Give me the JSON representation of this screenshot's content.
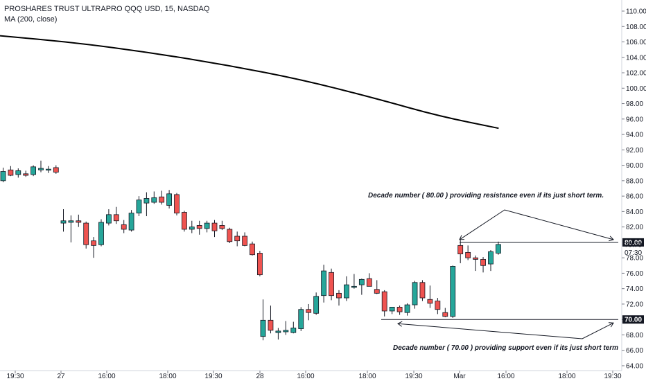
{
  "legend": {
    "symbol_line": "PROSHARES TRUST ULTRAPRO QQQ USD, 15, NASDAQ",
    "indicator_line": "MA (200, close)"
  },
  "colors": {
    "up": "#26a69a",
    "down": "#ef5350",
    "ma": "#000000",
    "level_tag": "#131722"
  },
  "chart_data": {
    "type": "candlestick",
    "ylim": [
      64,
      111
    ],
    "y_ticks": [
      64,
      66,
      68,
      70,
      72,
      74,
      76,
      78,
      82,
      84,
      86,
      88,
      90,
      92,
      94,
      96,
      98,
      100,
      102,
      104,
      106,
      108,
      110
    ],
    "x_ticks": [
      "19:30",
      "27",
      "16:00",
      "18:00",
      "19:30",
      "28",
      "16:00",
      "18:00",
      "19:30",
      "Mar",
      "16:00",
      "18:00",
      "19:30"
    ],
    "price_labels": {
      "upper_level": "80.00",
      "last_price": "79.73",
      "countdown": "07:30",
      "lower_level": "70.00"
    },
    "levels": [
      {
        "value": 80.0,
        "label": "80.00"
      },
      {
        "value": 70.0,
        "label": "70.00"
      }
    ],
    "annotations": {
      "resistance": "Decade number ( 80.00 ) providing resistance even if its just short term.",
      "support": "Decade number ( 70.00 ) providing support even if its just short term"
    },
    "candles": [
      {
        "o": 88.0,
        "h": 89.7,
        "l": 87.8,
        "c": 89.2
      },
      {
        "o": 89.4,
        "h": 89.9,
        "l": 88.6,
        "c": 88.7
      },
      {
        "o": 88.8,
        "h": 89.6,
        "l": 88.4,
        "c": 89.3
      },
      {
        "o": 88.9,
        "h": 89.3,
        "l": 88.5,
        "c": 88.7
      },
      {
        "o": 88.8,
        "h": 90.0,
        "l": 88.6,
        "c": 89.8
      },
      {
        "o": 89.4,
        "h": 90.6,
        "l": 89.1,
        "c": 89.6
      },
      {
        "o": 89.5,
        "h": 89.9,
        "l": 89.0,
        "c": 89.5
      },
      {
        "o": 89.7,
        "h": 90.0,
        "l": 88.9,
        "c": 89.1
      },
      {
        "o": 82.5,
        "h": 84.3,
        "l": 81.4,
        "c": 82.8
      },
      {
        "o": 82.6,
        "h": 83.5,
        "l": 80.0,
        "c": 82.8
      },
      {
        "o": 82.8,
        "h": 83.6,
        "l": 82.0,
        "c": 82.6
      },
      {
        "o": 82.5,
        "h": 82.7,
        "l": 79.2,
        "c": 79.7
      },
      {
        "o": 80.2,
        "h": 80.7,
        "l": 78.0,
        "c": 79.6
      },
      {
        "o": 79.7,
        "h": 83.0,
        "l": 79.5,
        "c": 82.6
      },
      {
        "o": 82.5,
        "h": 84.3,
        "l": 82.2,
        "c": 83.6
      },
      {
        "o": 83.6,
        "h": 84.6,
        "l": 82.4,
        "c": 82.8
      },
      {
        "o": 82.3,
        "h": 82.9,
        "l": 81.2,
        "c": 81.7
      },
      {
        "o": 81.6,
        "h": 84.2,
        "l": 81.4,
        "c": 83.8
      },
      {
        "o": 83.8,
        "h": 86.0,
        "l": 83.4,
        "c": 85.5
      },
      {
        "o": 85.1,
        "h": 86.5,
        "l": 83.4,
        "c": 85.7
      },
      {
        "o": 85.2,
        "h": 86.6,
        "l": 85.0,
        "c": 85.8
      },
      {
        "o": 85.9,
        "h": 86.7,
        "l": 84.9,
        "c": 85.2
      },
      {
        "o": 84.8,
        "h": 86.8,
        "l": 84.4,
        "c": 86.3
      },
      {
        "o": 86.2,
        "h": 86.4,
        "l": 83.5,
        "c": 83.8
      },
      {
        "o": 83.9,
        "h": 84.1,
        "l": 81.4,
        "c": 81.7
      },
      {
        "o": 81.7,
        "h": 82.8,
        "l": 81.2,
        "c": 82.0
      },
      {
        "o": 82.2,
        "h": 82.8,
        "l": 81.0,
        "c": 81.8
      },
      {
        "o": 81.8,
        "h": 82.8,
        "l": 81.3,
        "c": 82.5
      },
      {
        "o": 82.5,
        "h": 82.9,
        "l": 80.7,
        "c": 81.5
      },
      {
        "o": 82.2,
        "h": 82.8,
        "l": 81.6,
        "c": 81.8
      },
      {
        "o": 81.7,
        "h": 81.9,
        "l": 79.9,
        "c": 80.1
      },
      {
        "o": 80.8,
        "h": 81.4,
        "l": 79.5,
        "c": 80.2
      },
      {
        "o": 80.8,
        "h": 81.3,
        "l": 79.5,
        "c": 79.6
      },
      {
        "o": 79.8,
        "h": 80.1,
        "l": 78.3,
        "c": 78.4
      },
      {
        "o": 78.6,
        "h": 78.9,
        "l": 75.6,
        "c": 75.8
      },
      {
        "o": 67.8,
        "h": 72.6,
        "l": 67.3,
        "c": 69.9
      },
      {
        "o": 69.9,
        "h": 71.8,
        "l": 68.2,
        "c": 68.6
      },
      {
        "o": 68.3,
        "h": 68.9,
        "l": 67.4,
        "c": 68.5
      },
      {
        "o": 68.4,
        "h": 69.8,
        "l": 68.0,
        "c": 68.6
      },
      {
        "o": 68.3,
        "h": 69.7,
        "l": 68.2,
        "c": 68.9
      },
      {
        "o": 68.8,
        "h": 71.6,
        "l": 68.5,
        "c": 71.3
      },
      {
        "o": 71.3,
        "h": 72.0,
        "l": 69.9,
        "c": 70.9
      },
      {
        "o": 70.8,
        "h": 73.5,
        "l": 70.6,
        "c": 73.0
      },
      {
        "o": 73.1,
        "h": 77.1,
        "l": 72.2,
        "c": 76.3
      },
      {
        "o": 76.1,
        "h": 76.6,
        "l": 72.5,
        "c": 73.1
      },
      {
        "o": 73.4,
        "h": 73.8,
        "l": 71.8,
        "c": 72.8
      },
      {
        "o": 72.8,
        "h": 75.6,
        "l": 72.4,
        "c": 74.5
      },
      {
        "o": 74.2,
        "h": 75.9,
        "l": 74.0,
        "c": 74.3
      },
      {
        "o": 74.5,
        "h": 75.3,
        "l": 73.2,
        "c": 75.2
      },
      {
        "o": 75.3,
        "h": 76.0,
        "l": 74.4,
        "c": 74.3
      },
      {
        "o": 73.9,
        "h": 75.1,
        "l": 73.3,
        "c": 73.4
      },
      {
        "o": 73.6,
        "h": 73.8,
        "l": 70.4,
        "c": 71.1
      },
      {
        "o": 71.1,
        "h": 71.6,
        "l": 70.7,
        "c": 71.6
      },
      {
        "o": 71.6,
        "h": 71.8,
        "l": 70.6,
        "c": 71.0
      },
      {
        "o": 70.9,
        "h": 72.1,
        "l": 70.5,
        "c": 71.9
      },
      {
        "o": 71.9,
        "h": 75.0,
        "l": 71.4,
        "c": 74.8
      },
      {
        "o": 74.8,
        "h": 75.1,
        "l": 72.4,
        "c": 72.8
      },
      {
        "o": 72.6,
        "h": 74.4,
        "l": 71.5,
        "c": 72.1
      },
      {
        "o": 72.4,
        "h": 72.8,
        "l": 70.7,
        "c": 71.3
      },
      {
        "o": 70.9,
        "h": 71.5,
        "l": 70.3,
        "c": 70.4
      },
      {
        "o": 70.4,
        "h": 77.0,
        "l": 70.2,
        "c": 76.9
      },
      {
        "o": 79.6,
        "h": 80.3,
        "l": 77.3,
        "c": 78.5
      },
      {
        "o": 78.7,
        "h": 79.6,
        "l": 77.7,
        "c": 78.0
      },
      {
        "o": 78.0,
        "h": 78.3,
        "l": 76.3,
        "c": 77.8
      },
      {
        "o": 77.8,
        "h": 78.1,
        "l": 76.1,
        "c": 77.0
      },
      {
        "o": 77.2,
        "h": 79.0,
        "l": 76.3,
        "c": 78.8
      },
      {
        "o": 78.6,
        "h": 80.1,
        "l": 78.4,
        "c": 79.73
      }
    ],
    "ma_line": [
      {
        "t": 0,
        "v": 106.8
      },
      {
        "t": 10,
        "v": 105.9
      },
      {
        "t": 20,
        "v": 104.6
      },
      {
        "t": 30,
        "v": 103.0
      },
      {
        "t": 40,
        "v": 101.1
      },
      {
        "t": 50,
        "v": 98.6
      },
      {
        "t": 58,
        "v": 96.4
      },
      {
        "t": 66,
        "v": 94.8
      }
    ]
  }
}
